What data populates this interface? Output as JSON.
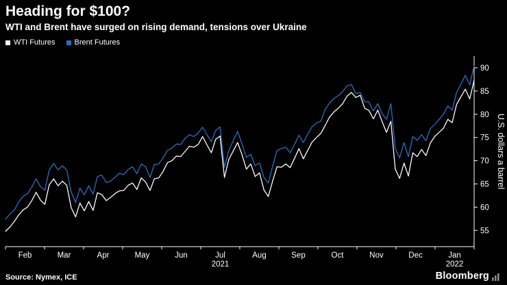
{
  "header": {
    "title": "Heading for $100?",
    "subtitle": "WTI and Brent have surged on rising demand, tensions over Ukraine"
  },
  "legend": [
    {
      "label": "WTI Futures",
      "color": "#ffffff"
    },
    {
      "label": "Brent Futures",
      "color": "#2d6fbf"
    }
  ],
  "footer": {
    "source": "Source: Nymex, ICE",
    "brand": "Bloomberg"
  },
  "colors": {
    "background": "#000000",
    "axis": "#ffffff",
    "text": "#ffffff",
    "wti_line": "#ffffff",
    "brent_line": "#2d6fbf"
  },
  "chart_data": {
    "type": "line",
    "title": "Heading for $100?",
    "subtitle": "WTI and Brent have surged on rising demand, tensions over Ukraine",
    "ylabel": "U.S. dollars a barrel",
    "ylim": [
      51.5,
      92.5
    ],
    "yticks": [
      55,
      60,
      65,
      70,
      75,
      80,
      85,
      90
    ],
    "x_months": [
      "Feb",
      "Mar",
      "Apr",
      "May",
      "Jun",
      "Jul",
      "Aug",
      "Sep",
      "Oct",
      "Nov",
      "Dec",
      "Jan"
    ],
    "year_labels": [
      {
        "label": "2021",
        "month_index": 5
      },
      {
        "label": "2022",
        "month_index": 11
      }
    ],
    "x_span": "Feb 2021 - Jan 2022, 9 points per month, evenly spaced",
    "grid": false,
    "legend_position": "top-left",
    "series": [
      {
        "name": "WTI Futures",
        "color": "#ffffff",
        "values": [
          54.8,
          55.7,
          56.9,
          58.3,
          59.4,
          60.0,
          61.4,
          63.2,
          61.5,
          60.6,
          64.8,
          66.1,
          64.6,
          65.6,
          64.7,
          59.9,
          57.9,
          60.9,
          59.2,
          61.2,
          59.3,
          63.1,
          62.7,
          61.4,
          62.1,
          62.9,
          63.5,
          63.6,
          64.7,
          65.2,
          63.8,
          66.3,
          65.4,
          63.6,
          66.1,
          66.3,
          67.7,
          69.6,
          70.0,
          71.0,
          70.9,
          72.0,
          73.1,
          72.9,
          73.5,
          75.2,
          73.4,
          71.7,
          74.6,
          75.3,
          66.4,
          70.3,
          72.1,
          73.9,
          71.3,
          68.2,
          69.3,
          66.6,
          67.4,
          63.7,
          62.3,
          65.6,
          68.7,
          68.6,
          69.3,
          68.5,
          70.5,
          72.6,
          70.4,
          72.2,
          74.0,
          75.0,
          75.9,
          77.6,
          79.4,
          80.5,
          81.3,
          82.3,
          83.9,
          84.7,
          83.6,
          84.1,
          81.3,
          80.8,
          79.0,
          80.9,
          78.4,
          76.1,
          78.5,
          68.2,
          66.2,
          69.5,
          66.7,
          71.7,
          70.9,
          72.4,
          71.1,
          73.8,
          75.2,
          76.1,
          77.0,
          78.9,
          78.2,
          82.1,
          83.8,
          85.4,
          83.3,
          87.3
        ]
      },
      {
        "name": "Brent Futures",
        "color": "#2d6fbf",
        "values": [
          57.4,
          58.5,
          59.3,
          61.1,
          62.3,
          62.9,
          64.3,
          66.1,
          64.4,
          63.7,
          68.0,
          69.4,
          68.0,
          68.9,
          68.0,
          63.3,
          61.0,
          64.1,
          62.7,
          64.6,
          62.8,
          66.6,
          66.9,
          65.3,
          65.6,
          66.4,
          67.3,
          67.0,
          68.1,
          68.7,
          67.2,
          69.3,
          68.7,
          66.4,
          69.2,
          69.3,
          70.6,
          72.2,
          72.7,
          73.6,
          73.5,
          74.8,
          75.6,
          75.2,
          76.0,
          77.2,
          75.6,
          74.1,
          76.5,
          77.3,
          68.6,
          72.2,
          74.3,
          76.3,
          73.6,
          70.7,
          71.4,
          68.9,
          69.5,
          66.4,
          65.2,
          68.8,
          72.2,
          72.6,
          72.9,
          71.7,
          73.5,
          75.5,
          73.9,
          75.7,
          77.3,
          78.1,
          78.5,
          81.1,
          82.4,
          83.4,
          84.0,
          84.9,
          86.1,
          86.4,
          84.4,
          84.7,
          82.7,
          82.6,
          80.7,
          82.3,
          80.1,
          78.9,
          82.3,
          72.7,
          70.6,
          73.9,
          70.9,
          75.2,
          74.4,
          75.6,
          74.3,
          76.9,
          77.8,
          78.9,
          80.0,
          81.8,
          80.9,
          84.7,
          86.5,
          88.4,
          86.3,
          90.4
        ]
      }
    ]
  }
}
